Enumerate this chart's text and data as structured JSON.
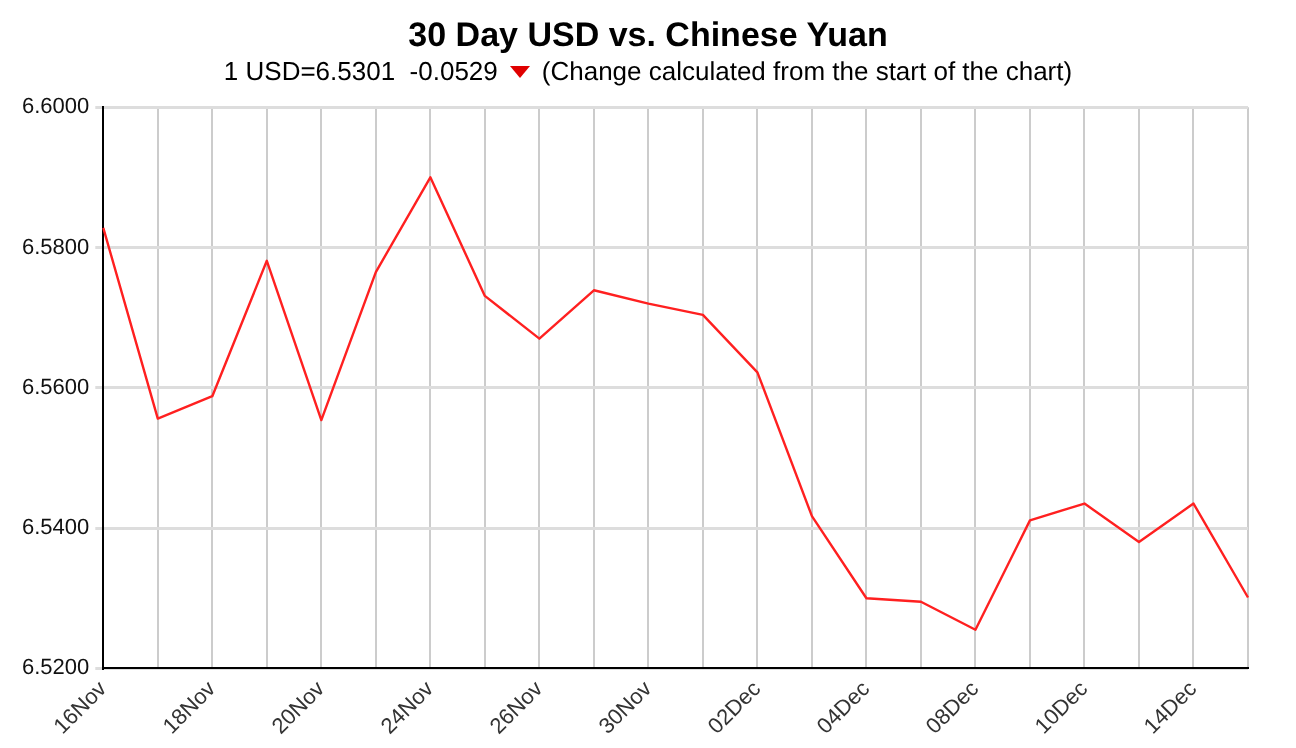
{
  "chart_data": {
    "type": "line",
    "title": "30 Day USD vs. Chinese Yuan",
    "subtitle": "1 USD=6.5301  -0.0529",
    "annotations": [
      "(Change calculated from the start of the chart)"
    ],
    "categories": [
      "16Nov",
      null,
      "18Nov",
      null,
      "20Nov",
      null,
      "24Nov",
      null,
      "26Nov",
      null,
      "30Nov",
      null,
      "02Dec",
      null,
      "04Dec",
      null,
      "08Dec",
      null,
      "10Dec",
      null,
      "14Dec",
      null
    ],
    "series": [
      {
        "color": "#ff2020",
        "values": [
          6.5828,
          6.5556,
          6.5588,
          6.5781,
          6.5554,
          6.5765,
          6.59,
          6.5731,
          6.567,
          6.5739,
          6.572,
          6.5704,
          6.5622,
          6.5417,
          6.53,
          6.5295,
          6.5255,
          6.5411,
          6.5435,
          6.538,
          6.5435,
          6.5301
        ]
      }
    ],
    "ylim": [
      6.52,
      6.6
    ],
    "yticks": [
      {
        "value": 6.52,
        "label": "6.5200"
      },
      {
        "value": 6.54,
        "label": "6.5400"
      },
      {
        "value": 6.56,
        "label": "6.5600"
      },
      {
        "value": 6.58,
        "label": "6.5800"
      },
      {
        "value": 6.6,
        "label": "6.6000"
      }
    ],
    "grid": true,
    "legend": false,
    "marker": "none",
    "line_style": "solid"
  }
}
